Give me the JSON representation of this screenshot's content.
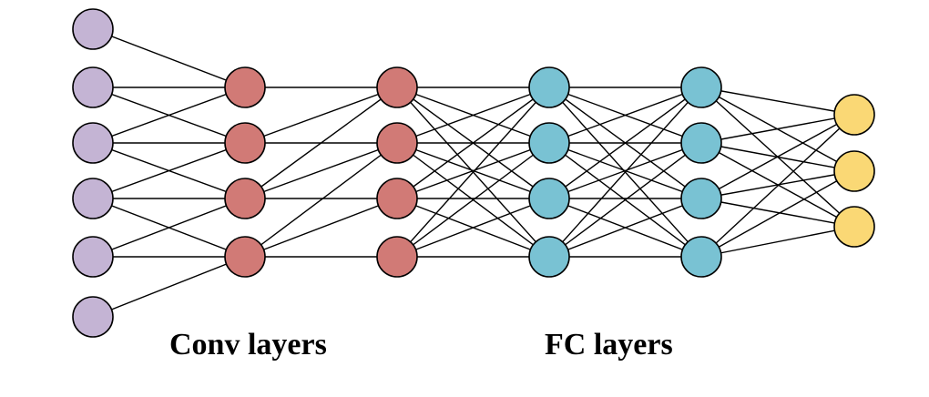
{
  "labels": {
    "conv": "Conv layers",
    "fc": "FC layers"
  },
  "colors": {
    "input": "#c4b4d4",
    "conv": "#d17a76",
    "fc": "#79c2d3",
    "output": "#fad875",
    "edge": "#000000"
  },
  "network": {
    "layers": [
      {
        "name": "input",
        "nodes": 6,
        "color_key": "input"
      },
      {
        "name": "conv-1",
        "nodes": 4,
        "color_key": "conv"
      },
      {
        "name": "conv-2",
        "nodes": 4,
        "color_key": "conv"
      },
      {
        "name": "fc-1",
        "nodes": 4,
        "color_key": "fc"
      },
      {
        "name": "fc-2",
        "nodes": 4,
        "color_key": "fc"
      },
      {
        "name": "output",
        "nodes": 3,
        "color_key": "output"
      }
    ],
    "connections": [
      {
        "from": 0,
        "to": 1,
        "type": "local",
        "kernel": 3
      },
      {
        "from": 1,
        "to": 2,
        "type": "local",
        "kernel": 3
      },
      {
        "from": 2,
        "to": 3,
        "type": "full"
      },
      {
        "from": 3,
        "to": 4,
        "type": "full"
      },
      {
        "from": 4,
        "to": 5,
        "type": "full"
      }
    ]
  }
}
